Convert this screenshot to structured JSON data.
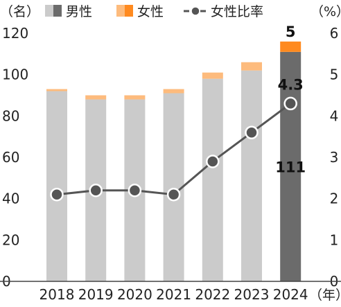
{
  "chart_data": {
    "type": "bar",
    "stacked": true,
    "categories": [
      "2018",
      "2019",
      "2020",
      "2021",
      "2022",
      "2023",
      "2024"
    ],
    "series": [
      {
        "name": "男性",
        "axis": "left",
        "values": [
          92,
          88,
          88,
          91,
          98,
          102,
          111
        ],
        "colors": {
          "normal": "#cbcbcb",
          "highlight": "#6b6b6b"
        }
      },
      {
        "name": "女性",
        "axis": "left",
        "values": [
          1,
          2,
          2,
          2,
          3,
          4,
          5
        ],
        "colors": {
          "normal": "#fdbb7d",
          "highlight": "#ff8a1f"
        }
      },
      {
        "name": "女性比率",
        "axis": "right",
        "type": "line",
        "values": [
          2.1,
          2.2,
          2.2,
          2.1,
          2.9,
          3.6,
          4.3
        ],
        "color": "#555555"
      }
    ],
    "highlight_category": "2024",
    "data_labels": {
      "female_2024": "5",
      "male_2024": "111",
      "ratio_2024": "4.3"
    },
    "left_axis": {
      "unit": "（名）",
      "ylim": [
        0,
        120
      ],
      "ticks": [
        "0",
        "20",
        "40",
        "60",
        "80",
        "100",
        "120"
      ]
    },
    "right_axis": {
      "unit": "（%）",
      "ylim": [
        0,
        6
      ],
      "ticks": [
        "0",
        "1",
        "2",
        "3",
        "4",
        "5",
        "6"
      ]
    },
    "x_axis": {
      "unit": "（年）"
    },
    "legend": {
      "position": "top",
      "items": [
        "男性",
        "女性",
        "女性比率"
      ]
    },
    "grid": false
  }
}
